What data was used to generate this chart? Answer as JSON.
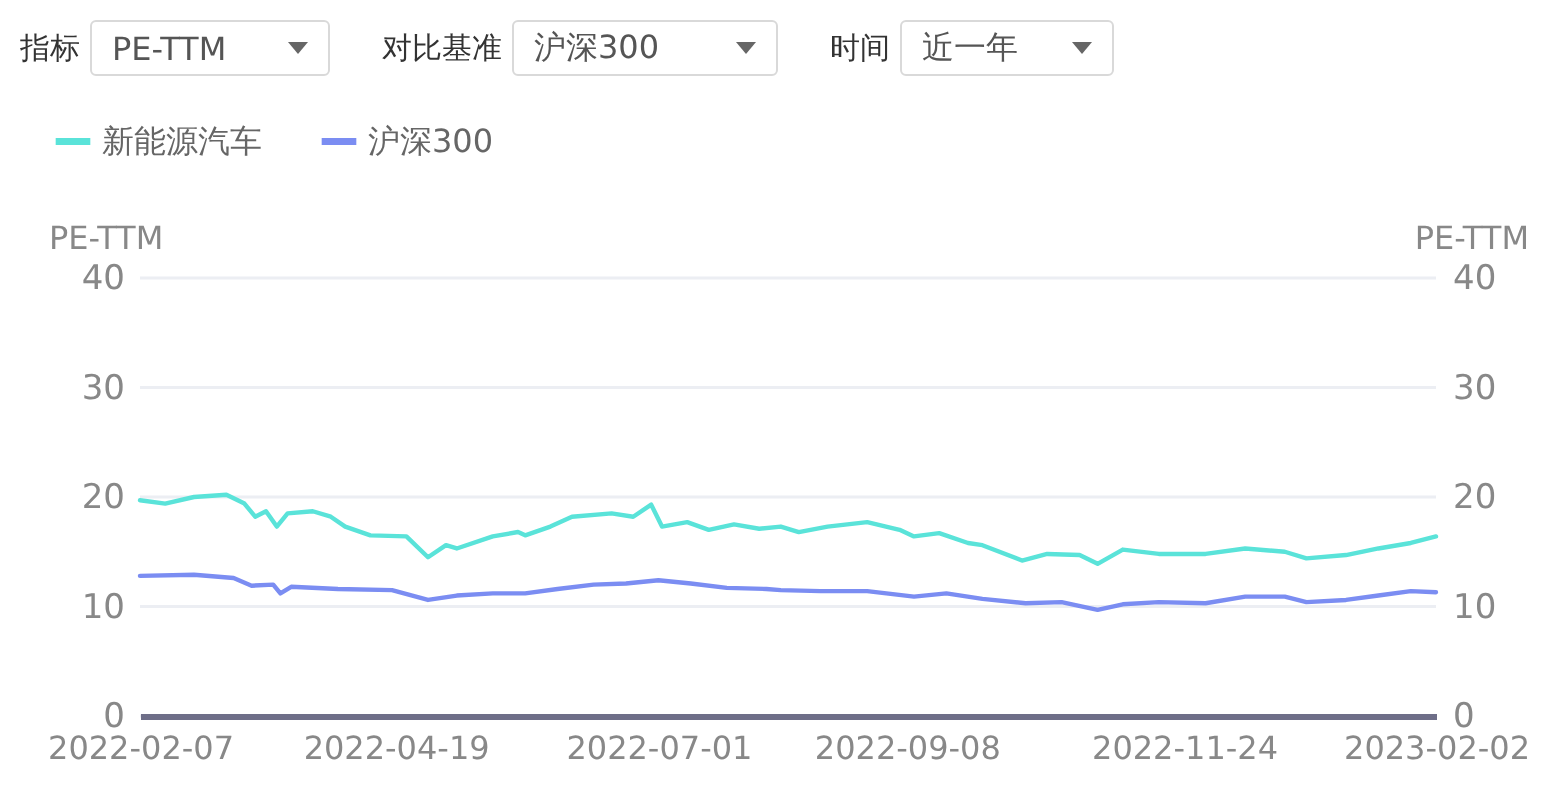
{
  "chart_data": {
    "type": "line",
    "ylabel": "PE-TTM",
    "y2label": "PE-TTM",
    "annotations": [
      "指标",
      "PE-TTM",
      "对比基准",
      "沪深300",
      "时间",
      "近一年"
    ],
    "xlim": [
      "2022-02-07",
      "2023-02-02"
    ],
    "xticks": [
      "2022-02-07",
      "2022-04-19",
      "2022-07-01",
      "2022-09-08",
      "2022-11-24",
      "2023-02-02"
    ],
    "ylim": [
      0,
      40
    ],
    "yticks": [
      0,
      10,
      20,
      30,
      40
    ],
    "y2lim": [
      0,
      40
    ],
    "y2ticks": [
      0,
      10,
      20,
      30,
      40
    ],
    "grid": "y",
    "legend": "top left",
    "line_style": "solid",
    "series": [
      {
        "name": "新能源汽车",
        "color": "#5ae3d9",
        "x": [
          "2022-02-07",
          "2022-02-14",
          "2022-02-22",
          "2022-03-03",
          "2022-03-08",
          "2022-03-11",
          "2022-03-14",
          "2022-03-17",
          "2022-03-20",
          "2022-03-27",
          "2022-04-01",
          "2022-04-05",
          "2022-04-12",
          "2022-04-22",
          "2022-04-28",
          "2022-05-03",
          "2022-05-06",
          "2022-05-16",
          "2022-05-23",
          "2022-05-25",
          "2022-06-01",
          "2022-06-07",
          "2022-06-18",
          "2022-06-24",
          "2022-06-29",
          "2022-07-02",
          "2022-07-09",
          "2022-07-15",
          "2022-07-22",
          "2022-07-29",
          "2022-08-04",
          "2022-08-09",
          "2022-08-17",
          "2022-08-28",
          "2022-09-06",
          "2022-09-10",
          "2022-09-17",
          "2022-09-25",
          "2022-09-29",
          "2022-10-10",
          "2022-10-17",
          "2022-10-26",
          "2022-10-31",
          "2022-11-07",
          "2022-11-17",
          "2022-11-30",
          "2022-12-11",
          "2022-12-22",
          "2022-12-28",
          "2023-01-08",
          "2023-01-17",
          "2023-01-26",
          "2023-02-02"
        ],
        "values": [
          19.7,
          19.4,
          20.0,
          20.2,
          19.4,
          18.2,
          18.7,
          17.3,
          18.5,
          18.7,
          18.2,
          17.3,
          16.5,
          16.4,
          14.5,
          15.6,
          15.3,
          16.4,
          16.8,
          16.5,
          17.3,
          18.2,
          18.5,
          18.2,
          19.3,
          17.3,
          17.7,
          17.0,
          17.5,
          17.1,
          17.3,
          16.8,
          17.3,
          17.7,
          17.0,
          16.4,
          16.7,
          15.8,
          15.6,
          14.2,
          14.8,
          14.7,
          13.9,
          15.2,
          14.8,
          14.8,
          15.3,
          15.0,
          14.4,
          14.7,
          15.3,
          15.8,
          16.4
        ]
      },
      {
        "name": "沪深300",
        "color": "#7b8df2",
        "x": [
          "2022-02-07",
          "2022-02-22",
          "2022-03-05",
          "2022-03-10",
          "2022-03-16",
          "2022-03-18",
          "2022-03-21",
          "2022-04-03",
          "2022-04-18",
          "2022-04-28",
          "2022-05-06",
          "2022-05-16",
          "2022-05-25",
          "2022-06-03",
          "2022-06-13",
          "2022-06-22",
          "2022-07-01",
          "2022-07-10",
          "2022-07-20",
          "2022-07-31",
          "2022-08-04",
          "2022-08-15",
          "2022-08-28",
          "2022-09-10",
          "2022-09-19",
          "2022-09-29",
          "2022-10-11",
          "2022-10-21",
          "2022-10-31",
          "2022-11-07",
          "2022-11-17",
          "2022-11-30",
          "2022-12-11",
          "2022-12-22",
          "2022-12-28",
          "2023-01-08",
          "2023-01-17",
          "2023-01-26",
          "2023-02-02"
        ],
        "values": [
          12.8,
          12.9,
          12.6,
          11.9,
          12.0,
          11.2,
          11.8,
          11.6,
          11.5,
          10.6,
          11.0,
          11.2,
          11.2,
          11.6,
          12.0,
          12.1,
          12.4,
          12.1,
          11.7,
          11.6,
          11.5,
          11.4,
          11.4,
          10.9,
          11.2,
          10.7,
          10.3,
          10.4,
          9.7,
          10.2,
          10.4,
          10.3,
          10.9,
          10.9,
          10.4,
          10.6,
          11.0,
          11.4,
          11.3
        ]
      }
    ]
  }
}
